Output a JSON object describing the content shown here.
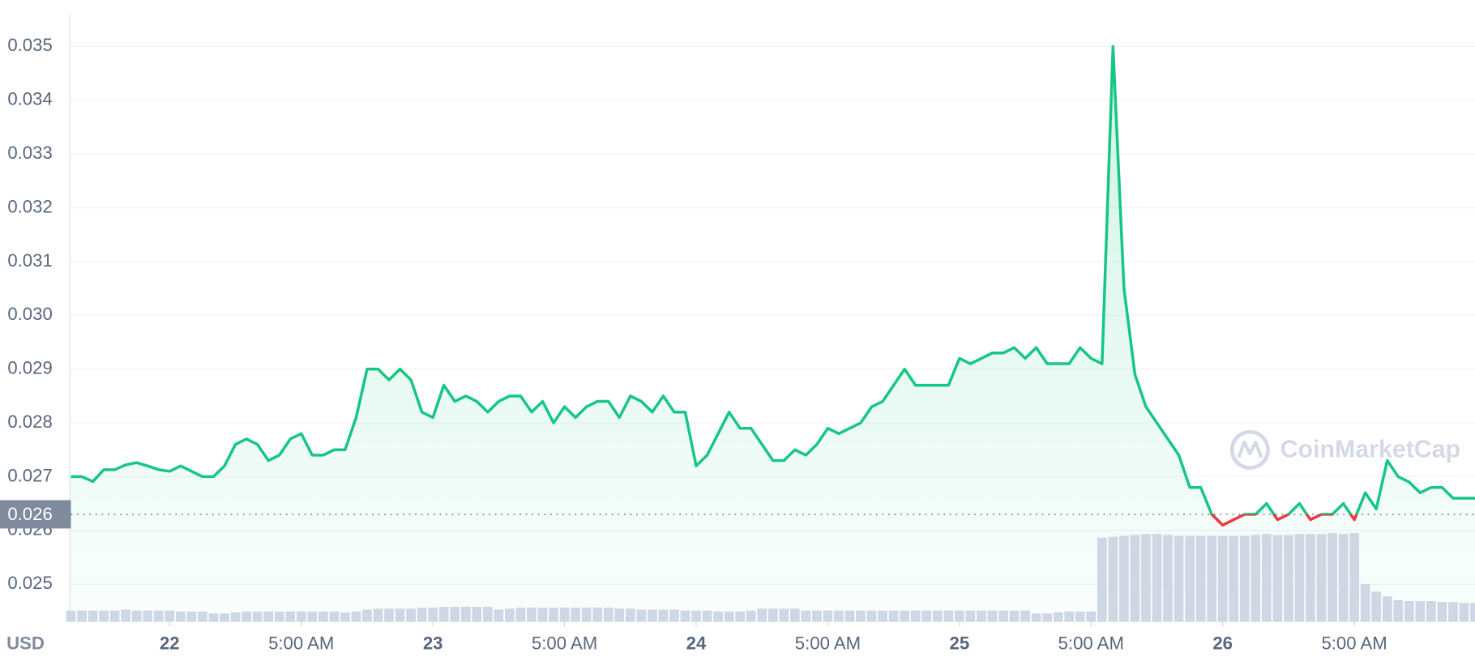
{
  "chart_data": {
    "type": "line",
    "xlim": [
      0,
      128
    ],
    "xticks": [
      {
        "value": 9,
        "label": "22"
      },
      {
        "value": 21,
        "label": "5:00 AM"
      },
      {
        "value": 33,
        "label": "23"
      },
      {
        "value": 45,
        "label": "5:00 AM"
      },
      {
        "value": 57,
        "label": "24"
      },
      {
        "value": 69,
        "label": "5:00 AM"
      },
      {
        "value": 81,
        "label": "25"
      },
      {
        "value": 93,
        "label": "5:00 AM"
      },
      {
        "value": 105,
        "label": "26"
      },
      {
        "value": 117,
        "label": "5:00 AM"
      }
    ],
    "ylim": [
      0.0243,
      0.0356
    ],
    "yticks": [
      0.025,
      0.026,
      0.027,
      0.028,
      0.029,
      {
        "value": 0.03,
        "label": "0.030"
      },
      0.031,
      0.032,
      0.033,
      0.034,
      0.035
    ],
    "y2lim": [
      0,
      100
    ],
    "grid": true,
    "currency": "USD",
    "reference": {
      "value": 0.0263,
      "label": "0.026",
      "color": "#808a9d"
    },
    "watermark": "CoinMarketCap",
    "series": [
      {
        "type": "line",
        "color": "#16c784",
        "below_color": "#ea3943",
        "values": [
          0.027,
          0.027,
          0.02691,
          0.02713,
          0.02713,
          0.02722,
          0.02726,
          0.0272,
          0.02713,
          0.0271,
          0.0272,
          0.0271,
          0.027,
          0.027,
          0.0272,
          0.0276,
          0.0277,
          0.0276,
          0.0273,
          0.0274,
          0.0277,
          0.0278,
          0.0274,
          0.0274,
          0.0275,
          0.0275,
          0.0281,
          0.029,
          0.029,
          0.0288,
          0.029,
          0.0288,
          0.0282,
          0.0281,
          0.0287,
          0.0284,
          0.0285,
          0.0284,
          0.0282,
          0.0284,
          0.0285,
          0.0285,
          0.0282,
          0.0284,
          0.028,
          0.0283,
          0.0281,
          0.0283,
          0.0284,
          0.0284,
          0.0281,
          0.0285,
          0.0284,
          0.0282,
          0.0285,
          0.0282,
          0.0282,
          0.0272,
          0.0274,
          0.0278,
          0.0282,
          0.0279,
          0.0279,
          0.0276,
          0.0273,
          0.0273,
          0.0275,
          0.0274,
          0.0276,
          0.0279,
          0.0278,
          0.0279,
          0.028,
          0.0283,
          0.0284,
          0.0287,
          0.029,
          0.0287,
          0.0287,
          0.0287,
          0.0287,
          0.0292,
          0.0291,
          0.0292,
          0.0293,
          0.0293,
          0.0294,
          0.0292,
          0.0294,
          0.0291,
          0.0291,
          0.0291,
          0.0294,
          0.0292,
          0.0291,
          0.035,
          0.0305,
          0.0289,
          0.0283,
          0.028,
          0.0277,
          0.0274,
          0.0268,
          0.0268,
          0.0263,
          0.0261,
          0.0262,
          0.0263,
          0.0263,
          0.0265,
          0.0262,
          0.0263,
          0.0265,
          0.0262,
          0.0263,
          0.0263,
          0.0265,
          0.0262,
          0.0267,
          0.0264,
          0.0273,
          0.027,
          0.0269,
          0.0267,
          0.0268,
          0.0268,
          0.0266,
          0.0266,
          0.0266
        ]
      },
      {
        "type": "bar",
        "axis": "y2",
        "color": "#cfd6e4",
        "values": [
          12,
          12,
          12,
          12,
          12,
          13,
          12,
          12,
          12,
          12,
          11,
          11,
          11,
          9,
          9,
          10,
          11,
          11,
          11,
          11,
          11,
          11,
          11,
          11,
          11,
          10,
          11,
          13,
          14,
          14,
          14,
          14,
          15,
          15,
          16,
          16,
          16,
          16,
          16,
          13,
          14,
          15,
          15,
          15,
          15,
          15,
          15,
          15,
          15,
          15,
          14,
          14,
          13,
          13,
          13,
          13,
          12,
          12,
          12,
          11,
          11,
          11,
          12,
          14,
          14,
          14,
          14,
          12,
          12,
          12,
          12,
          12,
          12,
          12,
          12,
          12,
          12,
          12,
          12,
          12,
          12,
          12,
          12,
          12,
          12,
          12,
          12,
          12,
          9,
          9,
          10,
          11,
          11,
          11,
          89,
          90,
          91,
          92,
          93,
          93,
          92,
          91,
          91,
          91,
          91,
          91,
          91,
          91,
          92,
          93,
          92,
          92,
          93,
          93,
          93,
          94,
          93,
          94,
          40,
          32,
          27,
          23,
          22,
          22,
          22,
          21,
          21,
          20,
          20
        ]
      }
    ]
  }
}
